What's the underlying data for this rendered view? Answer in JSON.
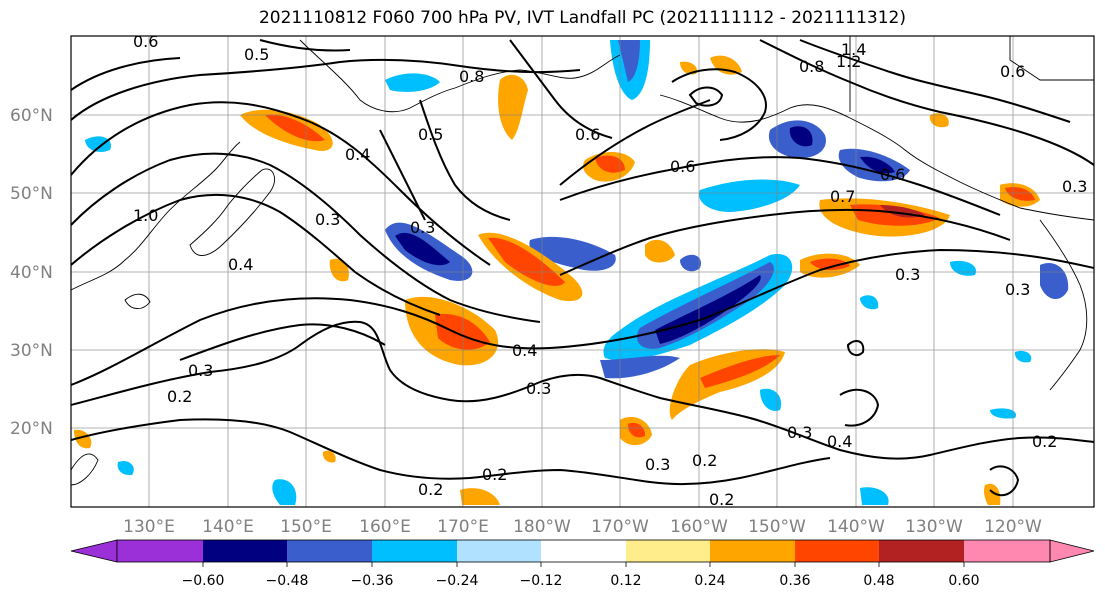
{
  "title": "2021110812 F060 700 hPa PV, IVT Landfall PC (2021111112 - 2021111312)",
  "lat_labels": [
    "60°N",
    "50°N",
    "40°N",
    "30°N",
    "20°N"
  ],
  "lon_labels": [
    "130°E",
    "140°E",
    "150°E",
    "160°E",
    "170°E",
    "180°W",
    "170°W",
    "160°W",
    "150°W",
    "140°W",
    "130°W",
    "120°W"
  ],
  "contour_labels": [
    "0.6",
    "0.5",
    "0.8",
    "1.4",
    "1.2",
    "0.6",
    "0.6",
    "0.8",
    "0.4",
    "0.5",
    "0.6",
    "0.6",
    "0.3",
    "1.0",
    "0.4",
    "0.3",
    "0.3",
    "0.7",
    "0.3",
    "0.4",
    "0.3",
    "0.2",
    "0.3",
    "0.3",
    "0.2",
    "0.2",
    "0.2",
    "0.4",
    "0.3",
    "0.2",
    "0.2",
    "0.3"
  ],
  "colorbar": {
    "ticks": [
      "−0.60",
      "−0.48",
      "−0.36",
      "−0.24",
      "−0.12",
      "0.12",
      "0.24",
      "0.36",
      "0.48",
      "0.60"
    ],
    "colors": [
      "#9b30d9",
      "#000080",
      "#3a5fcd",
      "#00bfff",
      "#b0e2ff",
      "#ffffff",
      "#ffec8b",
      "#ffa500",
      "#ff4500",
      "#b22222",
      "#ff88b0"
    ]
  },
  "shading_colors": {
    "neg_strong": "#000080",
    "neg_med": "#3a5fcd",
    "neg_light": "#00bfff",
    "neg_faint": "#b0e2ff",
    "pos_faint": "#ffec8b",
    "pos_light": "#ffa500",
    "pos_med": "#ff4500",
    "pos_strong": "#b22222"
  }
}
